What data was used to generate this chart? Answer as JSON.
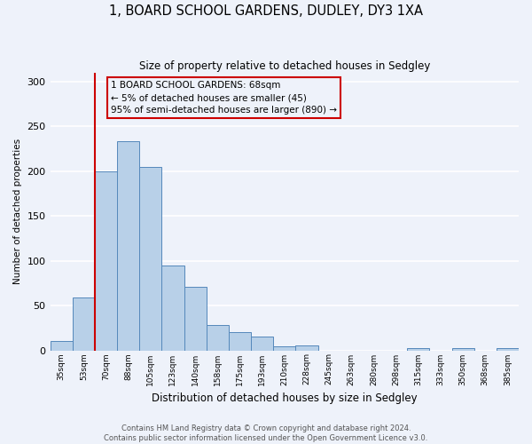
{
  "title": "1, BOARD SCHOOL GARDENS, DUDLEY, DY3 1XA",
  "subtitle": "Size of property relative to detached houses in Sedgley",
  "xlabel": "Distribution of detached houses by size in Sedgley",
  "ylabel": "Number of detached properties",
  "bar_labels": [
    "35sqm",
    "53sqm",
    "70sqm",
    "88sqm",
    "105sqm",
    "123sqm",
    "140sqm",
    "158sqm",
    "175sqm",
    "193sqm",
    "210sqm",
    "228sqm",
    "245sqm",
    "263sqm",
    "280sqm",
    "298sqm",
    "315sqm",
    "333sqm",
    "350sqm",
    "368sqm",
    "385sqm"
  ],
  "bar_values": [
    10,
    59,
    200,
    233,
    205,
    95,
    71,
    28,
    20,
    15,
    4,
    5,
    0,
    0,
    0,
    0,
    2,
    0,
    2,
    0,
    2
  ],
  "bar_color": "#b8d0e8",
  "bar_edge_color": "#5588bb",
  "highlight_color": "#cc0000",
  "ylim": [
    0,
    310
  ],
  "yticks": [
    0,
    50,
    100,
    150,
    200,
    250,
    300
  ],
  "annotation_box_text": "1 BOARD SCHOOL GARDENS: 68sqm\n← 5% of detached houses are smaller (45)\n95% of semi-detached houses are larger (890) →",
  "footnote": "Contains HM Land Registry data © Crown copyright and database right 2024.\nContains public sector information licensed under the Open Government Licence v3.0.",
  "bg_color": "#eef2fa",
  "grid_color": "#ffffff"
}
